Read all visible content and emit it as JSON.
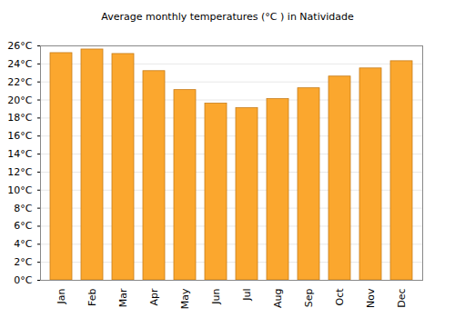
{
  "chart_data": {
    "type": "bar",
    "title": "Average monthly temperatures (°C ) in Natividade",
    "categories": [
      "Jan",
      "Feb",
      "Mar",
      "Apr",
      "May",
      "Jun",
      "Jul",
      "Aug",
      "Sep",
      "Oct",
      "Nov",
      "Dec"
    ],
    "values": [
      25.2,
      25.6,
      25.1,
      23.2,
      21.1,
      19.6,
      19.1,
      20.1,
      21.3,
      22.6,
      23.5,
      24.3
    ],
    "color": "#fba72e",
    "ylim": [
      0,
      26
    ],
    "yticks": [
      {
        "value": 0,
        "label": "0°C"
      },
      {
        "value": 2,
        "label": "2°C"
      },
      {
        "value": 4,
        "label": "4°C"
      },
      {
        "value": 6,
        "label": "6°C"
      },
      {
        "value": 8,
        "label": "8°C"
      },
      {
        "value": 10,
        "label": "10°C"
      },
      {
        "value": 12,
        "label": "12°C"
      },
      {
        "value": 14,
        "label": "14°C"
      },
      {
        "value": 16,
        "label": "16°C"
      },
      {
        "value": 18,
        "label": "18°C"
      },
      {
        "value": 20,
        "label": "20°C"
      },
      {
        "value": 22,
        "label": "22°C"
      },
      {
        "value": 24,
        "label": "24°C"
      },
      {
        "value": 26,
        "label": "26°C"
      }
    ],
    "grid": true
  }
}
